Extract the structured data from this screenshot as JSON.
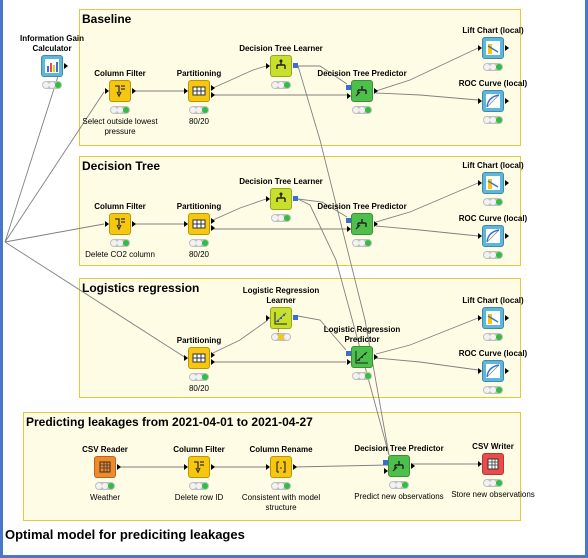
{
  "footer": "Optimal model for prediciting leakages",
  "annotations": {
    "baseline": "Baseline",
    "decision_tree": "Decision Tree",
    "logistics": "Logistics regression",
    "predicting": "Predicting leakages from 2021-04-01 to 2021-04-27"
  },
  "nodes": {
    "info_gain": {
      "label": "Information Gain Calculator",
      "comment": "",
      "icon": "bar-chart-icon",
      "color": "#5bb7dc"
    },
    "b_colfilter": {
      "label": "Column Filter",
      "comment": "Select outside lowest pressure",
      "icon": "filter-icon",
      "color": "#f6c70e"
    },
    "b_partition": {
      "label": "Partitioning",
      "comment": "80/20",
      "icon": "table-icon",
      "color": "#f6c70e"
    },
    "b_learner": {
      "label": "Decision Tree Learner",
      "comment": "",
      "icon": "tree-icon",
      "color": "#c8df2c"
    },
    "b_predictor": {
      "label": "Decision Tree Predictor",
      "comment": "",
      "icon": "tree-icon",
      "color": "#4cc04a"
    },
    "b_lift": {
      "label": "Lift Chart (local)",
      "comment": "",
      "icon": "lift-chart-icon",
      "color": "#5bb7dc"
    },
    "b_roc": {
      "label": "ROC Curve (local)",
      "comment": "",
      "icon": "roc-curve-icon",
      "color": "#5bb7dc"
    },
    "d_colfilter": {
      "label": "Column Filter",
      "comment": "Delete CO2 column",
      "icon": "filter-icon",
      "color": "#f6c70e"
    },
    "d_partition": {
      "label": "Partitioning",
      "comment": "80/20",
      "icon": "table-icon",
      "color": "#f6c70e"
    },
    "d_learner": {
      "label": "Decision Tree Learner",
      "comment": "",
      "icon": "tree-icon",
      "color": "#c8df2c"
    },
    "d_predictor": {
      "label": "Decision Tree Predictor",
      "comment": "",
      "icon": "tree-icon",
      "color": "#4cc04a"
    },
    "d_lift": {
      "label": "Lift Chart (local)",
      "comment": "",
      "icon": "lift-chart-icon",
      "color": "#5bb7dc"
    },
    "d_roc": {
      "label": "ROC Curve (local)",
      "comment": "",
      "icon": "roc-curve-icon",
      "color": "#5bb7dc"
    },
    "l_partition": {
      "label": "Partitioning",
      "comment": "80/20",
      "icon": "table-icon",
      "color": "#f6c70e"
    },
    "l_learner": {
      "label": "Logistic Regression Learner",
      "comment": "",
      "icon": "regression-icon",
      "color": "#c8df2c"
    },
    "l_predictor": {
      "label": "Logistic Regression Predictor",
      "comment": "",
      "icon": "regression-icon",
      "color": "#4cc04a"
    },
    "l_lift": {
      "label": "Lift Chart (local)",
      "comment": "",
      "icon": "lift-chart-icon",
      "color": "#5bb7dc"
    },
    "l_roc": {
      "label": "ROC Curve (local)",
      "comment": "",
      "icon": "roc-curve-icon",
      "color": "#5bb7dc"
    },
    "p_csvreader": {
      "label": "CSV Reader",
      "comment": "Weather",
      "icon": "csv-reader-icon",
      "color": "#f08a2a"
    },
    "p_colfilter": {
      "label": "Column Filter",
      "comment": "Delete row ID",
      "icon": "filter-icon",
      "color": "#f6c70e"
    },
    "p_rename": {
      "label": "Column Rename",
      "comment": "Consistent with model structure",
      "icon": "rename-icon",
      "color": "#f6c70e"
    },
    "p_predictor": {
      "label": "Decision Tree Predictor",
      "comment": "Predict new observations",
      "icon": "tree-icon",
      "color": "#4cc04a"
    },
    "p_csvwriter": {
      "label": "CSV Writer",
      "comment": "Store new observations",
      "icon": "csv-writer-icon",
      "color": "#ea4b4b"
    }
  }
}
